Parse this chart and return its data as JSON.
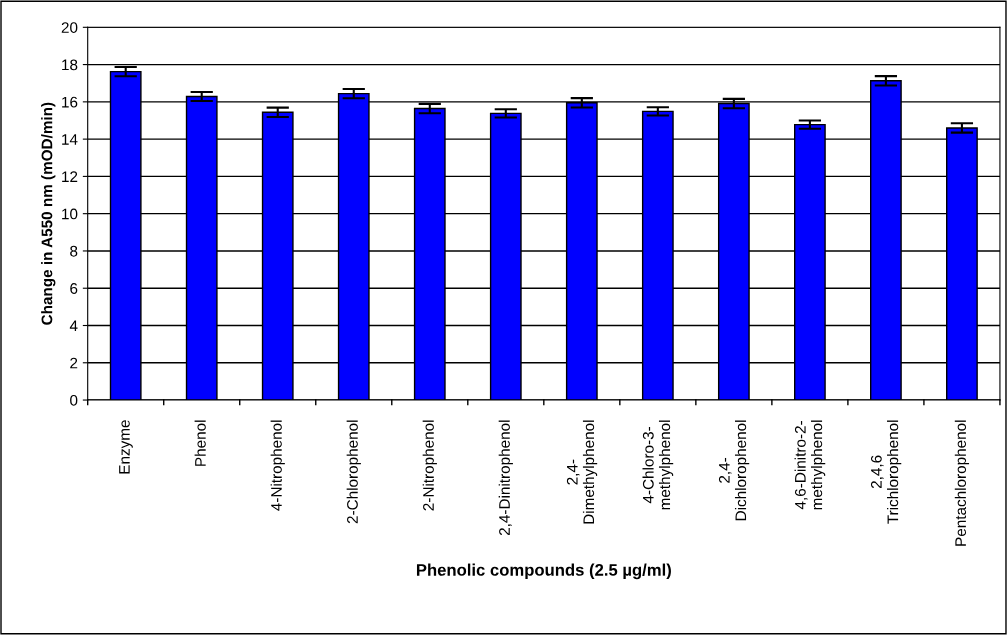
{
  "chart_data": {
    "type": "bar",
    "xlabel": "Phenolic compounds (2.5 µg/ml)",
    "ylabel": "Change in A550 nm (mOD/min)",
    "categories": [
      "Enzyme",
      "Phenol",
      "4-Nitrophenol",
      "2-Chlorophenol",
      "2-Nitrophenol",
      "2,4-Dinitrophenol",
      "2,4-\nDimethylphenol",
      "4-Chloro-3-\nmethylphenol",
      "2,4-\nDichlorophenol",
      "4,6-Dinitro-2-\nmethylphenol",
      "2,4,6\nTrichlorophenol",
      "Pentachlorophenol"
    ],
    "values": [
      17.62,
      16.29,
      15.44,
      16.44,
      15.64,
      15.38,
      15.95,
      15.49,
      15.91,
      14.78,
      17.13,
      14.6
    ],
    "errors": [
      0.25,
      0.24,
      0.25,
      0.25,
      0.25,
      0.22,
      0.25,
      0.22,
      0.25,
      0.22,
      0.25,
      0.25
    ],
    "color": "#0000ff",
    "ylim": [
      0,
      20
    ],
    "yticks": [
      0,
      2,
      4,
      6,
      8,
      10,
      12,
      14,
      16,
      18,
      20
    ],
    "grid": "y",
    "legend": false
  }
}
